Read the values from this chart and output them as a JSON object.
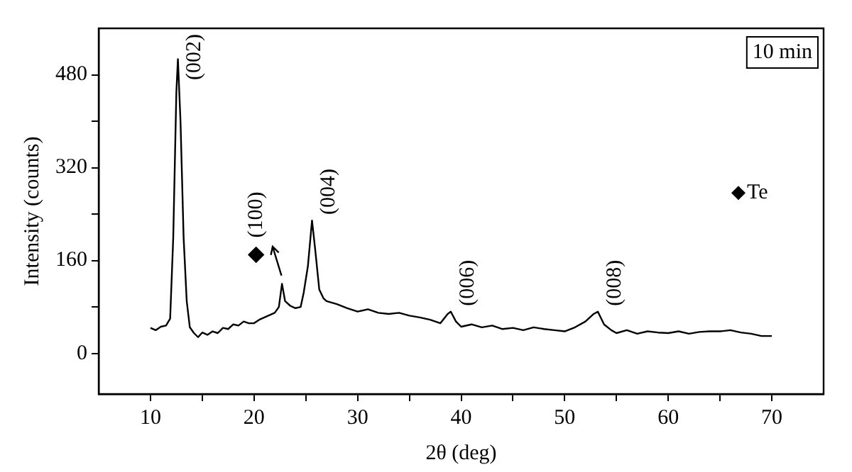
{
  "chart_data": {
    "type": "line",
    "xlabel": "2θ (deg)",
    "ylabel": "Intensity (counts)",
    "xlim": [
      5,
      75
    ],
    "ylim": [
      -70,
      560
    ],
    "xticks": [
      10,
      {
        "value": 15,
        "label": null
      },
      20,
      {
        "value": 25,
        "label": null
      },
      30,
      {
        "value": 35,
        "label": null
      },
      40,
      {
        "value": 45,
        "label": null
      },
      50,
      {
        "value": 55,
        "label": null
      },
      60,
      {
        "value": 65,
        "label": null
      },
      70
    ],
    "yticks": [
      0,
      {
        "value": 80,
        "label": null
      },
      160,
      {
        "value": 240,
        "label": null
      },
      320,
      {
        "value": 400,
        "label": null
      },
      480
    ],
    "grid": false,
    "legend": "right",
    "series": [
      {
        "color": "#000000",
        "marker": "none",
        "x": [
          10,
          10.5,
          11,
          11.5,
          11.9,
          12.2,
          12.5,
          12.65,
          12.9,
          13.2,
          13.5,
          13.8,
          14.2,
          14.6,
          15,
          15.5,
          16,
          16.5,
          17,
          17.5,
          18,
          18.5,
          19,
          19.5,
          20,
          20.5,
          21,
          21.5,
          22,
          22.4,
          22.7,
          23,
          23.5,
          24,
          24.5,
          24.8,
          25.2,
          25.6,
          25.9,
          26.3,
          26.7,
          27,
          28,
          29,
          30,
          31,
          32,
          33,
          34,
          35,
          36,
          37,
          38,
          38.7,
          39,
          39.5,
          40,
          41,
          42,
          43,
          44,
          45,
          46,
          47,
          48,
          49,
          50,
          51,
          52,
          52.8,
          53.2,
          53.8,
          54.5,
          55,
          56,
          57,
          58,
          59,
          60,
          61,
          62,
          63,
          64,
          65,
          66,
          67,
          68,
          69,
          70
        ],
        "values": [
          44,
          40,
          46,
          48,
          60,
          200,
          450,
          507,
          400,
          200,
          90,
          45,
          35,
          28,
          36,
          32,
          38,
          35,
          44,
          42,
          50,
          48,
          55,
          52,
          52,
          58,
          62,
          66,
          70,
          80,
          120,
          90,
          82,
          78,
          80,
          105,
          150,
          229,
          180,
          110,
          95,
          90,
          85,
          78,
          72,
          76,
          70,
          68,
          70,
          65,
          62,
          58,
          52,
          68,
          72,
          55,
          46,
          50,
          45,
          48,
          42,
          44,
          40,
          45,
          42,
          40,
          38,
          45,
          55,
          68,
          72,
          50,
          40,
          35,
          40,
          34,
          38,
          36,
          35,
          38,
          34,
          37,
          38,
          38,
          40,
          36,
          34,
          30,
          30
        ]
      },
      {
        "type": "scatter",
        "name": "Te",
        "color": "#000000",
        "marker": "diamond",
        "x": [
          20.2
        ],
        "values": [
          170
        ]
      }
    ],
    "annotations": [
      {
        "text": "(002)",
        "x": 12.65,
        "y": 507
      },
      {
        "text": "(100)",
        "x": 22.7,
        "y": 120
      },
      {
        "text": "(004)",
        "x": 25.6,
        "y": 229
      },
      {
        "text": "(006)",
        "x": 39,
        "y": 72
      },
      {
        "text": "(008)",
        "x": 53.2,
        "y": 72
      },
      "10 min"
    ]
  }
}
